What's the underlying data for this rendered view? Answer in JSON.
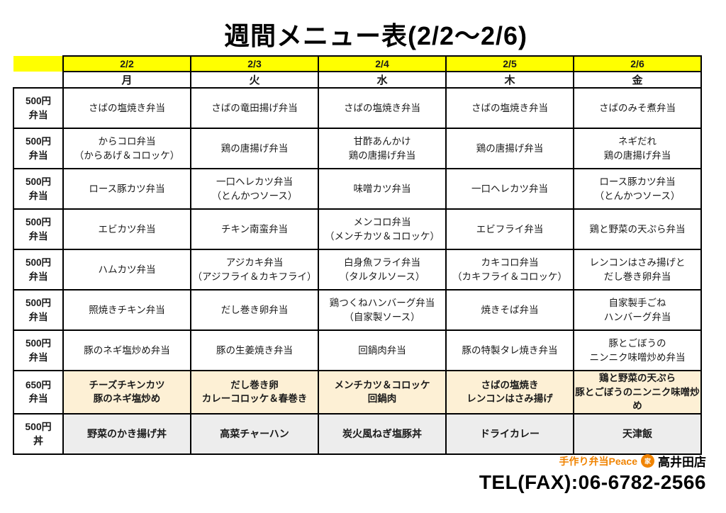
{
  "title": "週間メニュー表(2/2～2/6)",
  "colors": {
    "date_header_bg": "#ffff00",
    "row_650_bg": "#fdf0d5",
    "row_don_bg": "#ededed",
    "logo_orange": "#f08300",
    "border": "#000000"
  },
  "table": {
    "dates": [
      "2/2",
      "2/3",
      "2/4",
      "2/5",
      "2/6"
    ],
    "days": [
      "月",
      "火",
      "水",
      "木",
      "金"
    ],
    "rows": [
      {
        "price_label": "500円\n弁当",
        "cells": [
          "さばの塩焼き弁当",
          "さばの竜田揚げ弁当",
          "さばの塩焼き弁当",
          "さばの塩焼き弁当",
          "さばのみそ煮弁当"
        ]
      },
      {
        "price_label": "500円\n弁当",
        "cells": [
          "からコロ弁当\n（からあげ＆コロッケ）",
          "鶏の唐揚げ弁当",
          "甘酢あんかけ\n鶏の唐揚げ弁当",
          "鶏の唐揚げ弁当",
          "ネギだれ\n鶏の唐揚げ弁当"
        ]
      },
      {
        "price_label": "500円\n弁当",
        "cells": [
          "ロース豚カツ弁当",
          "一口ヘレカツ弁当\n（とんかつソース）",
          "味噌カツ弁当",
          "一口ヘレカツ弁当",
          "ロース豚カツ弁当\n（とんかつソース）"
        ]
      },
      {
        "price_label": "500円\n弁当",
        "cells": [
          "エビカツ弁当",
          "チキン南蛮弁当",
          "メンコロ弁当\n（メンチカツ＆コロッケ）",
          "エビフライ弁当",
          "鶏と野菜の天ぷら弁当"
        ]
      },
      {
        "price_label": "500円\n弁当",
        "cells": [
          "ハムカツ弁当",
          "アジカキ弁当\n（アジフライ＆カキフライ）",
          "白身魚フライ弁当\n（タルタルソース）",
          "カキコロ弁当\n（カキフライ＆コロッケ）",
          "レンコンはさみ揚げと\nだし巻き卵弁当"
        ]
      },
      {
        "price_label": "500円\n弁当",
        "cells": [
          "照焼きチキン弁当",
          "だし巻き卵弁当",
          "鶏つくねハンバーグ弁当\n（自家製ソース）",
          "焼きそば弁当",
          "自家製手ごね\nハンバーグ弁当"
        ]
      },
      {
        "price_label": "500円\n弁当",
        "cells": [
          "豚のネギ塩炒め弁当",
          "豚の生姜焼き弁当",
          "回鍋肉弁当",
          "豚の特製タレ焼き弁当",
          "豚とごぼうの\nニンニク味噌炒め弁当"
        ]
      },
      {
        "price_label": "650円\n弁当",
        "cells": [
          "チーズチキンカツ\n豚のネギ塩炒め",
          "だし巻き卵\nカレーコロッケ＆春巻き",
          "メンチカツ＆コロッケ\n回鍋肉",
          "さばの塩焼き\nレンコンはさみ揚げ",
          "鶏と野菜の天ぷら\n豚とごぼうのニンニク味噌炒め"
        ]
      },
      {
        "price_label": "500円\n丼",
        "cells": [
          "野菜のかき揚げ丼",
          "高菜チャーハン",
          "炭火風ねぎ塩豚丼",
          "ドライカレー",
          "天津飯"
        ]
      }
    ]
  },
  "footer": {
    "shop_logo": "手作り弁当Peace",
    "badge_glyph": "家",
    "branch": "高井田店",
    "tel": "TEL(FAX):06-6782-2566"
  }
}
